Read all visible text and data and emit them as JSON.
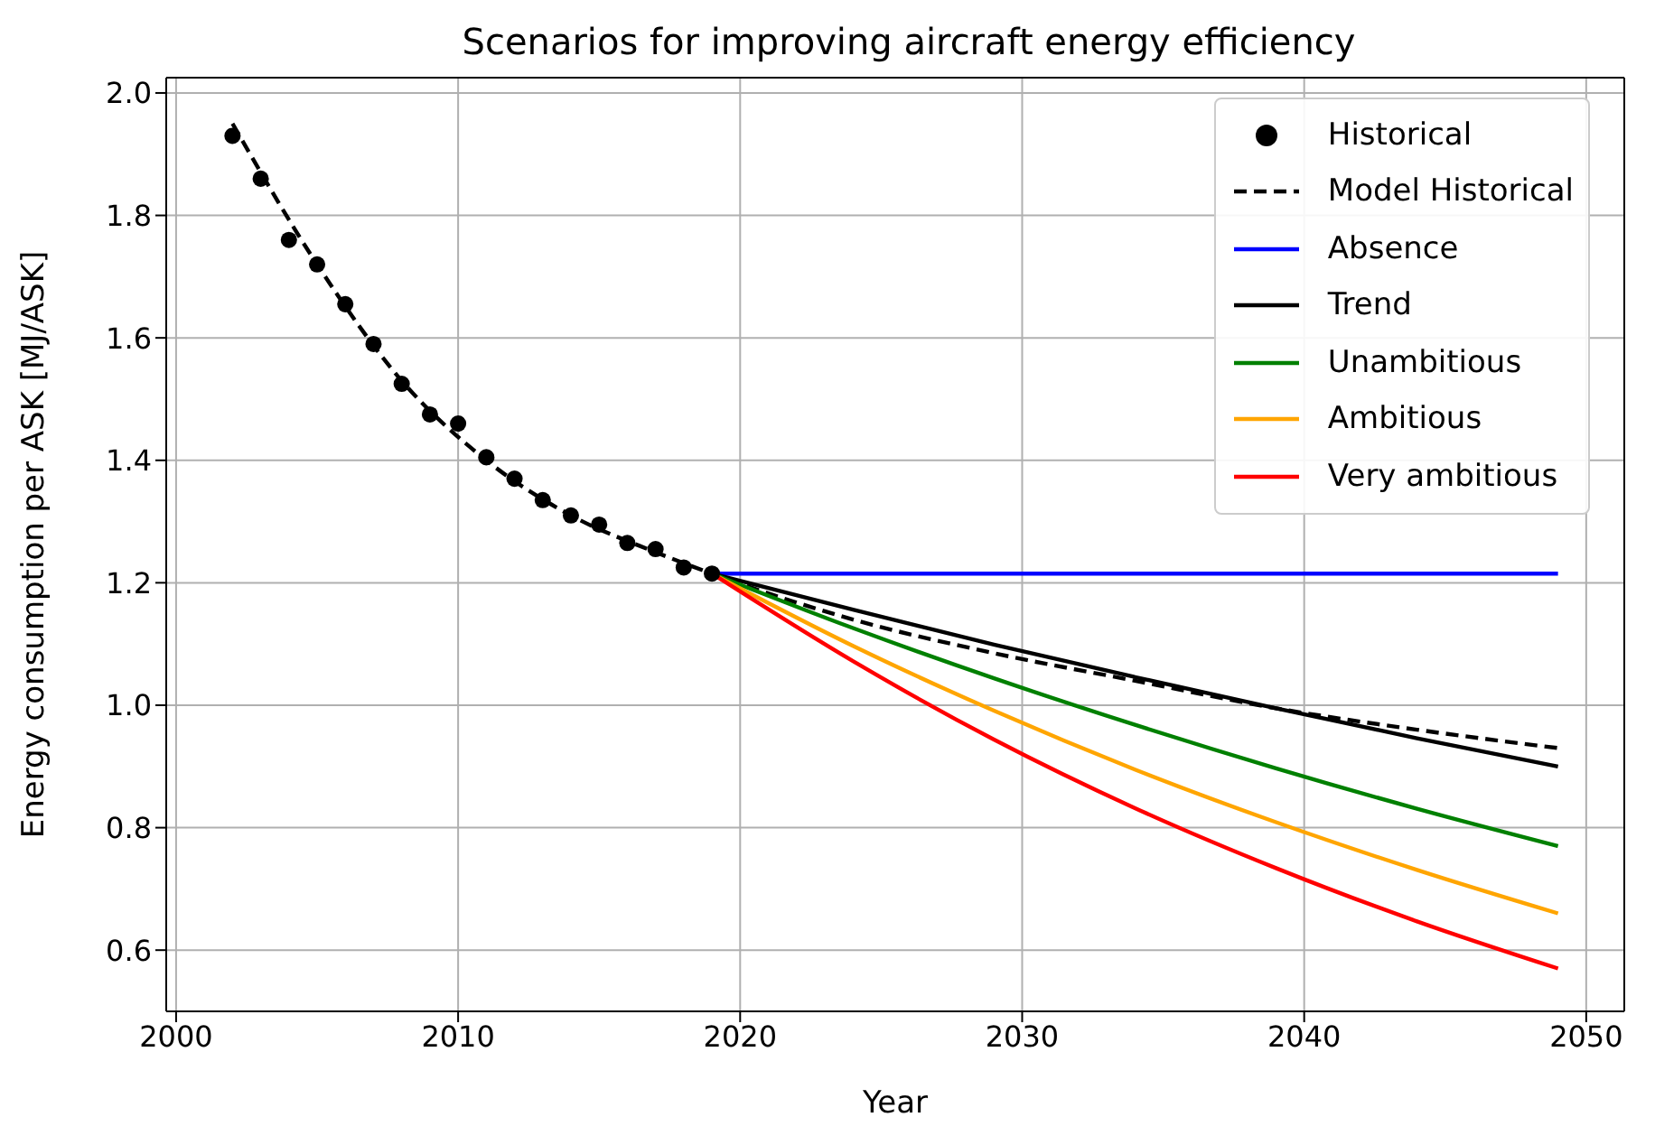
{
  "chart_data": {
    "type": "line",
    "title": "Scenarios for improving aircraft energy efficiency",
    "xlabel": "Year",
    "ylabel": "Energy consumption per ASK [MJ/ASK]",
    "xlim": [
      1999.65,
      2051.35
    ],
    "xticks": [
      2000,
      2010,
      2020,
      2030,
      2040,
      2050
    ],
    "ylim": [
      0.5,
      2.025
    ],
    "yticks": [
      0.6,
      0.8,
      {
        "value": 1,
        "label": "1.0"
      },
      1.2,
      1.4,
      1.6,
      1.8,
      {
        "value": 2,
        "label": "2.0"
      }
    ],
    "grid": true,
    "legend": "top right",
    "series": [
      {
        "name": "Historical",
        "type": "scatter",
        "marker": "circle",
        "color": "#000000",
        "x": [
          2002,
          2003,
          2004,
          2005,
          2006,
          2007,
          2008,
          2009,
          2010,
          2011,
          2012,
          2013,
          2014,
          2015,
          2016,
          2017,
          2018,
          2019
        ],
        "values": [
          1.93,
          1.86,
          1.76,
          1.72,
          1.655,
          1.59,
          1.525,
          1.475,
          1.46,
          1.405,
          1.37,
          1.335,
          1.31,
          1.295,
          1.265,
          1.255,
          1.225,
          1.215
        ]
      },
      {
        "name": "Model Historical",
        "line_style": "dashed",
        "color": "#000000",
        "x": [
          2002,
          2005,
          2008,
          2011,
          2014,
          2017,
          2019,
          2024,
          2029,
          2034,
          2039,
          2044,
          2049
        ],
        "values": [
          1.95,
          1.72,
          1.53,
          1.4,
          1.31,
          1.25,
          1.215,
          1.14,
          1.085,
          1.04,
          0.995,
          0.96,
          0.93
        ]
      },
      {
        "name": "Absence",
        "line_style": "solid",
        "color": "#0000ff",
        "x": [
          2019,
          2049
        ],
        "values": [
          1.215,
          1.215
        ]
      },
      {
        "name": "Trend",
        "line_style": "solid",
        "color": "#000000",
        "x": [
          2019,
          2024,
          2029,
          2034,
          2039,
          2044,
          2049
        ],
        "values": [
          1.215,
          1.156,
          1.099,
          1.046,
          0.995,
          0.946,
          0.9
        ]
      },
      {
        "name": "Unambitious",
        "line_style": "solid",
        "color": "#008000",
        "x": [
          2019,
          2024,
          2029,
          2034,
          2039,
          2044,
          2049
        ],
        "values": [
          1.215,
          1.126,
          1.044,
          0.968,
          0.897,
          0.831,
          0.77
        ]
      },
      {
        "name": "Ambitious",
        "line_style": "solid",
        "color": "#ffa500",
        "x": [
          2019,
          2024,
          2029,
          2034,
          2039,
          2044,
          2049
        ],
        "values": [
          1.215,
          1.097,
          0.991,
          0.895,
          0.809,
          0.731,
          0.66
        ]
      },
      {
        "name": "Very ambitious",
        "line_style": "solid",
        "color": "#ff0000",
        "x": [
          2019,
          2024,
          2029,
          2034,
          2039,
          2044,
          2049
        ],
        "values": [
          1.215,
          1.072,
          0.944,
          0.832,
          0.734,
          0.647,
          0.57
        ]
      }
    ]
  }
}
